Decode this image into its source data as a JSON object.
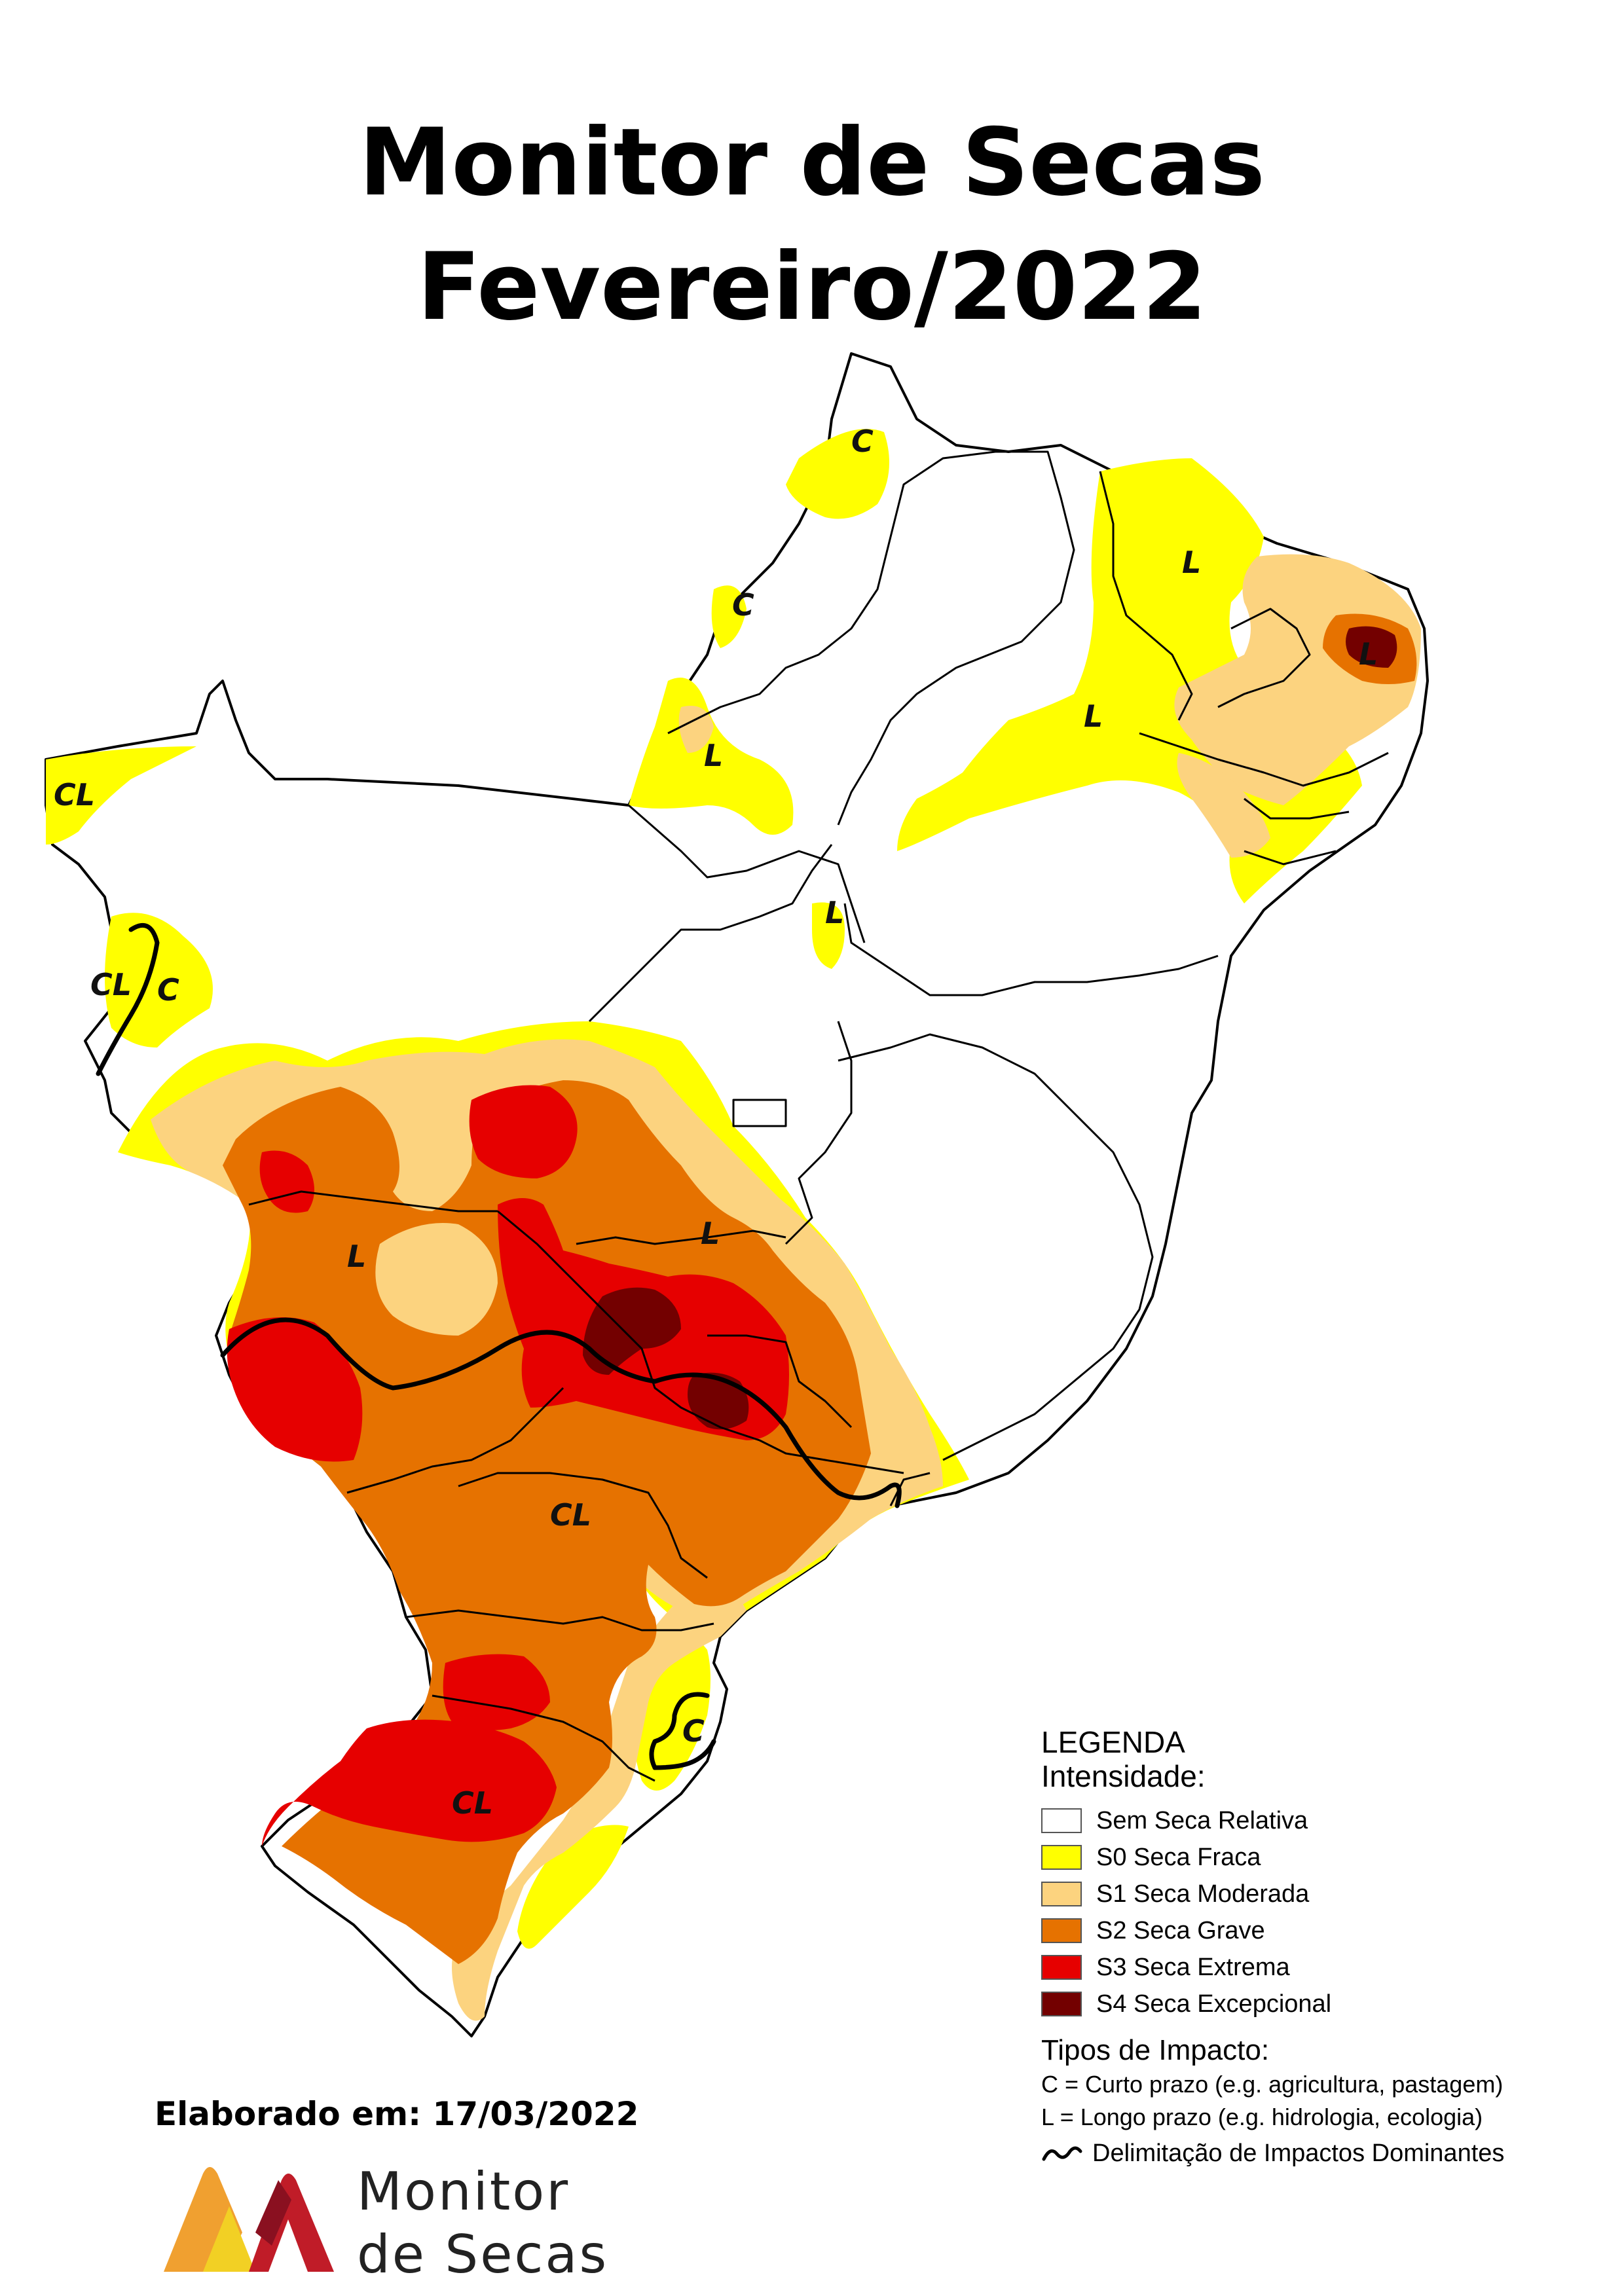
{
  "title": {
    "line1": "Monitor de Secas",
    "line2": "Fevereiro/2022"
  },
  "map_labels": {
    "ap_c": "C",
    "ma_c": "C",
    "ma_l": "L",
    "ce_l": "L",
    "pb_l": "L",
    "pi_l": "L",
    "to_l": "L",
    "ac_cl": "CL",
    "ro_cl": "CL",
    "ro_c": "C",
    "go_l": "L",
    "ms_l": "L",
    "pr_cl": "CL",
    "sc_c": "C",
    "rs_cl": "CL"
  },
  "legend": {
    "title": "LEGENDA",
    "subtitle": "Intensidade:",
    "items": [
      {
        "label": "Sem Seca Relativa",
        "color": "#ffffff"
      },
      {
        "label": "S0 Seca Fraca",
        "color": "#ffff00"
      },
      {
        "label": "S1 Seca Moderada",
        "color": "#fcd37f"
      },
      {
        "label": "S2 Seca Grave",
        "color": "#e67200"
      },
      {
        "label": "S3 Seca Extrema",
        "color": "#e60000"
      },
      {
        "label": "S4 Seca Excepcional",
        "color": "#730000"
      }
    ],
    "impact_title": "Tipos de Impacto:",
    "impact_c": "C = Curto prazo (e.g. agricultura, pastagem)",
    "impact_l": "L = Longo prazo (e.g. hidrologia, ecologia)",
    "impact_line": "Delimitação de Impactos Dominantes"
  },
  "footer": {
    "date": "Elaborado em: 17/03/2022",
    "logo_line1": "Monitor",
    "logo_line2": "de Secas"
  },
  "colors": {
    "s0": "#ffff00",
    "s1": "#fcd37f",
    "s2": "#e67200",
    "s3": "#e60000",
    "s4": "#730000",
    "logo_orange": "#f0a030",
    "logo_yellow": "#f2d024",
    "logo_red": "#c01c28",
    "logo_dark": "#8a1020"
  }
}
